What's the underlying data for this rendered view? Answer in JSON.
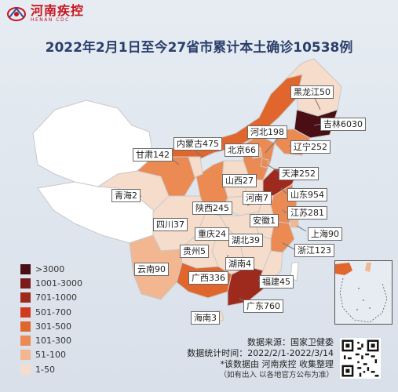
{
  "logo": {
    "cn": "河南疾控",
    "en": "HENAN CDC",
    "icon": "henan-cdc-logo"
  },
  "title": "2022年2月1日至今27省市累计本土确诊10538例",
  "legend": [
    {
      "label": ">3000",
      "color": "#4a0f15"
    },
    {
      "label": "1001-3000",
      "color": "#7a1c1c"
    },
    {
      "label": "701-1000",
      "color": "#9e2a1e"
    },
    {
      "label": "501-700",
      "color": "#d23a20"
    },
    {
      "label": "301-500",
      "color": "#e0662e"
    },
    {
      "label": "101-300",
      "color": "#eb8a52"
    },
    {
      "label": "51-100",
      "color": "#f2b690"
    },
    {
      "label": "1-50",
      "color": "#f6dccb"
    }
  ],
  "labels": [
    {
      "name": "黑龙江",
      "value": "黑龙江50"
    },
    {
      "name": "吉林",
      "value": "吉林6030"
    },
    {
      "name": "河北",
      "value": "河北198"
    },
    {
      "name": "内蒙古",
      "value": "内蒙古475"
    },
    {
      "name": "辽宁",
      "value": "辽宁252"
    },
    {
      "name": "甘肃",
      "value": "甘肃142"
    },
    {
      "name": "北京",
      "value": "北京66"
    },
    {
      "name": "天津",
      "value": "天津252"
    },
    {
      "name": "山西",
      "value": "山西27"
    },
    {
      "name": "青海",
      "value": "青海2"
    },
    {
      "name": "河南",
      "value": "河南7"
    },
    {
      "name": "山东",
      "value": "山东954"
    },
    {
      "name": "陕西",
      "value": "陕西245"
    },
    {
      "name": "安徽",
      "value": "安徽1"
    },
    {
      "name": "江苏",
      "value": "江苏281"
    },
    {
      "name": "四川",
      "value": "四川37"
    },
    {
      "name": "重庆",
      "value": "重庆24"
    },
    {
      "name": "上海",
      "value": "上海90"
    },
    {
      "name": "湖北",
      "value": "湖北39"
    },
    {
      "name": "贵州",
      "value": "贵州5"
    },
    {
      "name": "浙江",
      "value": "浙江123"
    },
    {
      "name": "湖南",
      "value": "湖南4"
    },
    {
      "name": "云南",
      "value": "云南90"
    },
    {
      "name": "广西",
      "value": "广西336"
    },
    {
      "name": "福建",
      "value": "福建45"
    },
    {
      "name": "广东",
      "value": "广东760"
    },
    {
      "name": "海南",
      "value": "海南3"
    }
  ],
  "footer": {
    "source": "数据来源：国家卫健委",
    "period": "数据统计时间：2022/2/1-2022/3/14",
    "compiled": "*该数据由 河南疾控 收集整理",
    "note": "（如有出入 以各地官方公布为准）"
  },
  "qr_icon": "qr-code-icon"
}
